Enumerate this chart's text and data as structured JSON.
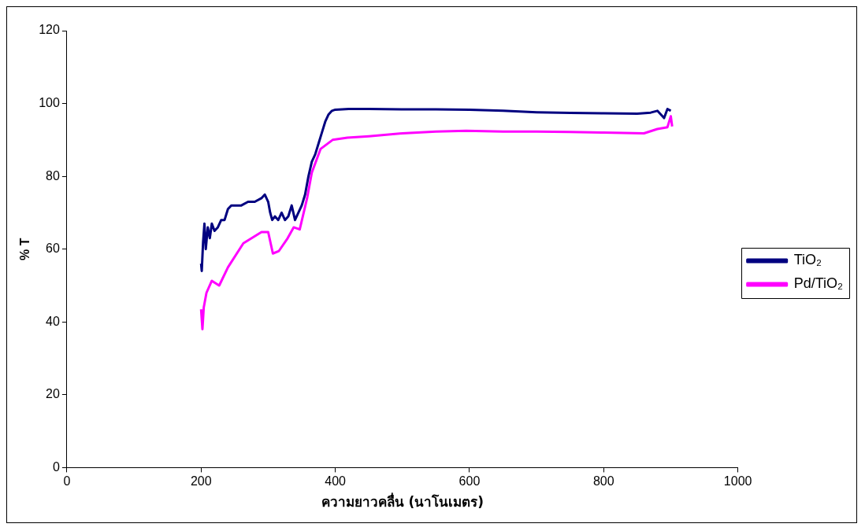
{
  "chart_data": {
    "type": "line",
    "xlabel": "ความยาวคลื่น (นาโนเมตร)",
    "ylabel": "% T",
    "xlim": [
      0,
      1000
    ],
    "xticks": [
      0,
      200,
      400,
      600,
      800,
      1000
    ],
    "ylim": [
      0,
      120
    ],
    "yticks": [
      0,
      20,
      40,
      60,
      80,
      100,
      120
    ],
    "grid": false,
    "legend": "right",
    "marker": "none",
    "line_style": "solid",
    "series": [
      {
        "name": "TiO₂",
        "color": "#000080",
        "x": [
          200,
          201,
          203,
          205,
          207,
          210,
          213,
          216,
          220,
          225,
          230,
          235,
          240,
          245,
          250,
          260,
          270,
          280,
          290,
          295,
          300,
          303,
          306,
          310,
          315,
          320,
          325,
          330,
          335,
          340,
          345,
          350,
          355,
          360,
          365,
          370,
          375,
          380,
          385,
          390,
          395,
          400,
          420,
          450,
          500,
          550,
          600,
          650,
          700,
          750,
          800,
          850,
          870,
          880,
          890,
          895,
          900
        ],
        "values": [
          56,
          54,
          62,
          67,
          60,
          66,
          63,
          67,
          65,
          66,
          68,
          68,
          71,
          72,
          72,
          72,
          73,
          73,
          74,
          75,
          73,
          70,
          68,
          69,
          68,
          70,
          68,
          69,
          72,
          68,
          70,
          72,
          75,
          80,
          84,
          86,
          89,
          92,
          95,
          97,
          98,
          98.3,
          98.5,
          98.5,
          98.4,
          98.4,
          98.3,
          98,
          97.6,
          97.4,
          97.3,
          97.2,
          97.5,
          98,
          96,
          98.5,
          98
        ]
      },
      {
        "name": "Pd/TiO₂",
        "color": "#ff00ff",
        "x": [
          200,
          202,
          204,
          208,
          216,
          227,
          240,
          263,
          290,
          300,
          307,
          316,
          329,
          338,
          347,
          358,
          365,
          378,
          396,
          418,
          450,
          500,
          550,
          595,
          650,
          700,
          750,
          800,
          860,
          880,
          895,
          900,
          902
        ],
        "values": [
          43.5,
          38,
          44,
          48,
          51.3,
          50,
          55,
          61.6,
          64.7,
          64.7,
          58.8,
          59.5,
          63,
          66,
          65.4,
          74,
          81,
          87.5,
          90,
          90.6,
          91,
          91.8,
          92.3,
          92.5,
          92.3,
          92.3,
          92.2,
          92,
          91.8,
          93,
          93.5,
          96.5,
          93.7
        ]
      }
    ]
  }
}
